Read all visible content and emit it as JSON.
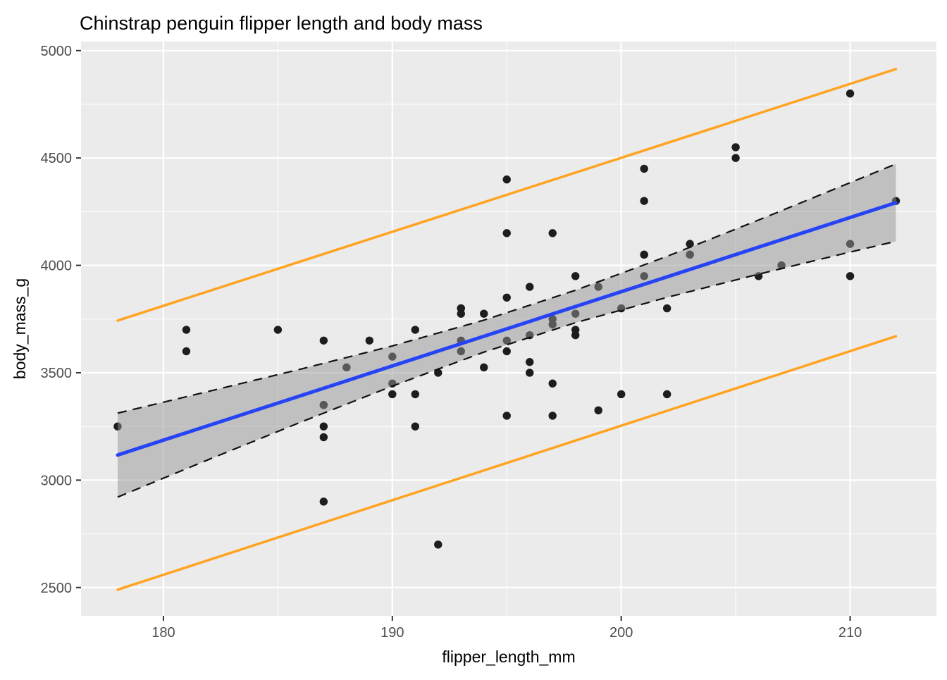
{
  "chart_data": {
    "type": "scatter",
    "title": "Chinstrap penguin flipper length and body mass",
    "xlabel": "flipper_length_mm",
    "ylabel": "body_mass_g",
    "xlim": [
      176.4,
      213.77
    ],
    "ylim": [
      2368,
      5042
    ],
    "x_major_ticks": [
      180,
      190,
      200,
      210
    ],
    "x_minor_ticks": [
      185,
      195,
      205
    ],
    "y_major_ticks": [
      2500,
      3000,
      3500,
      4000,
      4500,
      5000
    ],
    "y_minor_ticks": [
      2750,
      3250,
      3750,
      4250,
      4750
    ],
    "grid": true,
    "legend_position": "none",
    "points": [
      [
        192,
        3500
      ],
      [
        196,
        3900
      ],
      [
        193,
        3650
      ],
      [
        188,
        3525
      ],
      [
        197,
        3725
      ],
      [
        198,
        3950
      ],
      [
        178,
        3250
      ],
      [
        197,
        3750
      ],
      [
        195,
        4150
      ],
      [
        198,
        3700
      ],
      [
        193,
        3800
      ],
      [
        194,
        3775
      ],
      [
        185,
        3700
      ],
      [
        201,
        4050
      ],
      [
        190,
        3575
      ],
      [
        201,
        4050
      ],
      [
        197,
        3300
      ],
      [
        181,
        3700
      ],
      [
        190,
        3450
      ],
      [
        195,
        4400
      ],
      [
        181,
        3600
      ],
      [
        191,
        3400
      ],
      [
        187,
        2900
      ],
      [
        193,
        3800
      ],
      [
        195,
        3300
      ],
      [
        197,
        4150
      ],
      [
        200,
        3400
      ],
      [
        200,
        3800
      ],
      [
        191,
        3700
      ],
      [
        205,
        4550
      ],
      [
        187,
        3200
      ],
      [
        201,
        4300
      ],
      [
        187,
        3350
      ],
      [
        203,
        4100
      ],
      [
        195,
        3600
      ],
      [
        199,
        3900
      ],
      [
        195,
        3850
      ],
      [
        210,
        4800
      ],
      [
        192,
        2700
      ],
      [
        205,
        4500
      ],
      [
        210,
        3950
      ],
      [
        187,
        3650
      ],
      [
        196,
        3550
      ],
      [
        196,
        3500
      ],
      [
        196,
        3675
      ],
      [
        201,
        4450
      ],
      [
        190,
        3400
      ],
      [
        212,
        4300
      ],
      [
        187,
        3250
      ],
      [
        198,
        3675
      ],
      [
        199,
        3325
      ],
      [
        201,
        3950
      ],
      [
        193,
        3600
      ],
      [
        203,
        4050
      ],
      [
        187,
        3350
      ],
      [
        197,
        3450
      ],
      [
        191,
        3250
      ],
      [
        203,
        4050
      ],
      [
        202,
        3800
      ],
      [
        194,
        3525
      ],
      [
        206,
        3950
      ],
      [
        189,
        3650
      ],
      [
        195,
        3650
      ],
      [
        207,
        4000
      ],
      [
        202,
        3400
      ],
      [
        193,
        3775
      ],
      [
        210,
        4100
      ],
      [
        198,
        3775
      ]
    ],
    "regression_line": {
      "x": [
        178,
        212
      ],
      "y": [
        3117,
        4292
      ]
    },
    "confidence_band": {
      "x": [
        178,
        182,
        186,
        190,
        194,
        198,
        202,
        206,
        210,
        212
      ],
      "upper": [
        3312,
        3414,
        3517,
        3625,
        3745,
        3884,
        4042,
        4211,
        4385,
        4472
      ],
      "lower": [
        2921,
        3097,
        3270,
        3438,
        3596,
        3733,
        3851,
        3959,
        4062,
        4112
      ]
    },
    "prediction_interval": {
      "upper": {
        "x": [
          178,
          212
        ],
        "y": [
          3743,
          4914
        ]
      },
      "lower": {
        "x": [
          178,
          212
        ],
        "y": [
          2490,
          3670
        ]
      }
    },
    "colors": {
      "figure_background": "#FFFFFF",
      "panel_background": "#EBEBEB",
      "grid": "#FFFFFF",
      "point": "#1D1D1D",
      "regression_line": "#2643F5",
      "band_fill": "rgba(150,150,150,0.5)",
      "band_border": "#111111",
      "interval_line": "#FFA321",
      "title_text": "#000000",
      "axis_title_text": "#000000",
      "tick_label_text": "#4D4D4D",
      "tick_mark": "#333333"
    }
  }
}
